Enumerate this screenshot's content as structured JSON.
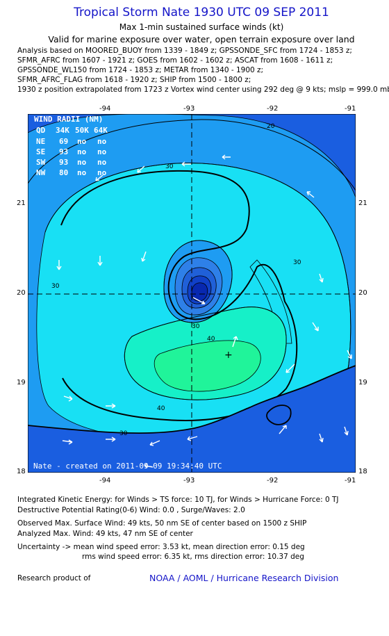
{
  "header": {
    "title": "Tropical Storm Nate 1930 UTC 09 SEP 2011",
    "subtitle": "Max 1-min sustained surface winds (kt)",
    "valid": "Valid for marine exposure over water, open terrain exposure over land",
    "analysis_lines": [
      "Analysis based on MOORED_BUOY from 1339 - 1849 z; GPSSONDE_SFC from 1724 - 1853 z;",
      "SFMR_AFRC from 1607 - 1921 z; GOES from 1602 - 1602 z; ASCAT from 1608 - 1611 z;",
      "GPSSONDE_WL150 from 1724 - 1853 z; METAR from 1340 - 1900 z;",
      "SFMR_AFRC_FLAG from 1618 - 1920 z; SHIP from 1500 - 1800 z;",
      "1930 z position extrapolated from 1723 z Vortex wind center using 292 deg @ 9 kts; mslp = 999.0 mb"
    ]
  },
  "map": {
    "lon_ticks": [
      "-94",
      "-93",
      "-92",
      "-91"
    ],
    "lat_ticks": [
      "21",
      "20",
      "19",
      "18"
    ],
    "lon_range": [
      -94.95,
      -91.05
    ],
    "lat_range": [
      18.0,
      22.0
    ],
    "center": {
      "lon": -92.98,
      "lat": 19.98
    },
    "max_wind_location": {
      "lon": -92.6,
      "lat": 19.32
    },
    "contour_labels": [
      "20",
      "30",
      "30",
      "30",
      "30",
      "30",
      "40",
      "40"
    ],
    "radii_table": {
      "title": "WIND RADII (NM)",
      "header": [
        "QD",
        "34K",
        "50K",
        "64K"
      ],
      "rows": [
        [
          "NE",
          "69",
          "no",
          "no"
        ],
        [
          "SE",
          "93",
          "no",
          "no"
        ],
        [
          "SW",
          "93",
          "no",
          "no"
        ],
        [
          "NW",
          "80",
          "no",
          "no"
        ]
      ]
    },
    "stamp": "Nate - created on 2011-09-09 19:34:40 UTC",
    "colors": {
      "level_0_20": "#1a5ee0",
      "level_20_30": "#1e9cf2",
      "level_30_40": "#18e0f4",
      "level_40_45": "#16f0c8",
      "level_45_50": "#20f49a",
      "core_1": "#2e80e8",
      "core_2": "#2060d8",
      "core_3": "#1040c8",
      "core_4": "#0828b0"
    }
  },
  "stats": {
    "ike": "Integrated Kinetic Energy:  for Winds > TS force: 10 TJ,  for Winds > Hurricane Force: 0 TJ",
    "dpr": "Destructive Potential Rating(0-6)   Wind: 0.0 , Surge/Waves: 2.0",
    "obs_max": "Observed Max. Surface Wind: 49 kts, 50 nm SE of center based on 1500 z SHIP",
    "ana_max": "Analyzed Max. Wind: 49 kts, 47 nm SE of center",
    "unc1": "Uncertainty -> mean wind speed error: 3.53 kt,   mean direction error: 0.15 deg",
    "unc2": "rms wind speed error: 6.35 kt,   rms direction error: 10.37 deg"
  },
  "footer": {
    "left": "Research product of",
    "right": "NOAA / AOML / Hurricane Research Division"
  }
}
